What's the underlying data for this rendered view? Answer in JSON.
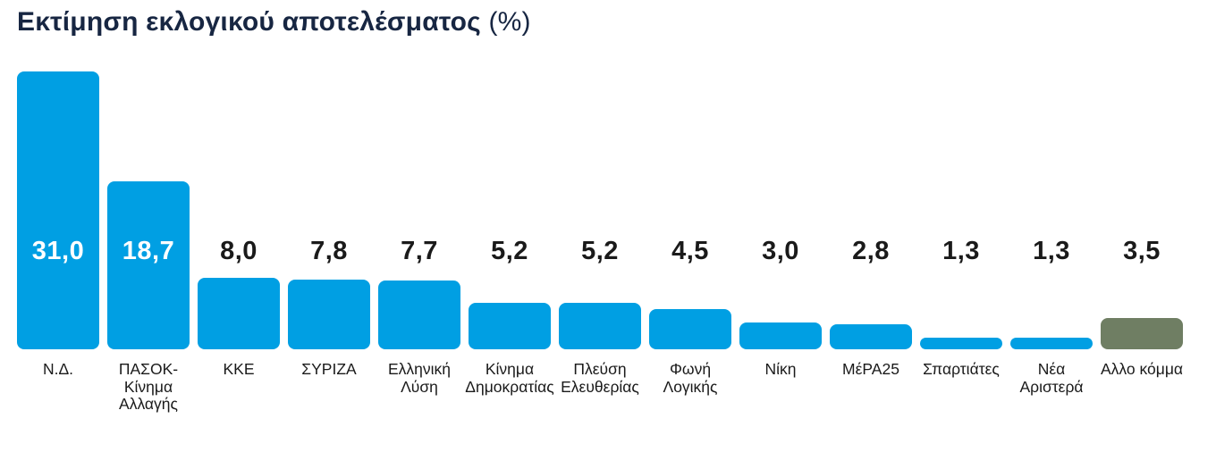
{
  "chart_data": {
    "type": "bar",
    "title": "Εκτίμηση εκλογικού αποτελέσματος",
    "title_suffix": "(%)",
    "categories": [
      "Ν.Δ.",
      "ΠΑΣΟΚ-\nΚίνημα\nΑλλαγής",
      "ΚΚΕ",
      "ΣΥΡΙΖΑ",
      "Ελληνική\nΛύση",
      "Κίνημα\nΔημοκρατίας",
      "Πλεύση\nΕλευθερίας",
      "Φωνή\nΛογικής",
      "Νίκη",
      "ΜέΡΑ25",
      "Σπαρτιάτες",
      "Νέα\nΑριστερά",
      "Αλλο κόμμα"
    ],
    "values": [
      31.0,
      18.7,
      8.0,
      7.8,
      7.7,
      5.2,
      5.2,
      4.5,
      3.0,
      2.8,
      1.3,
      1.3,
      3.5
    ],
    "value_labels": [
      "31,0",
      "18,7",
      "8,0",
      "7,8",
      "7,7",
      "5,2",
      "5,2",
      "4,5",
      "3,0",
      "2,8",
      "1,3",
      "1,3",
      "3,5"
    ],
    "bar_colors": [
      "#009FE3",
      "#009FE3",
      "#009FE3",
      "#009FE3",
      "#009FE3",
      "#009FE3",
      "#009FE3",
      "#009FE3",
      "#009FE3",
      "#009FE3",
      "#009FE3",
      "#009FE3",
      "#6F7E63"
    ],
    "value_label_inside": [
      true,
      true,
      false,
      false,
      false,
      false,
      false,
      false,
      false,
      false,
      false,
      false,
      false
    ],
    "value_label_colors": {
      "inside": "#ffffff",
      "outside": "#1a1a1a"
    },
    "xlabel": "",
    "ylabel": "",
    "ylim": [
      0,
      33
    ],
    "grid": false,
    "legend": "none"
  }
}
